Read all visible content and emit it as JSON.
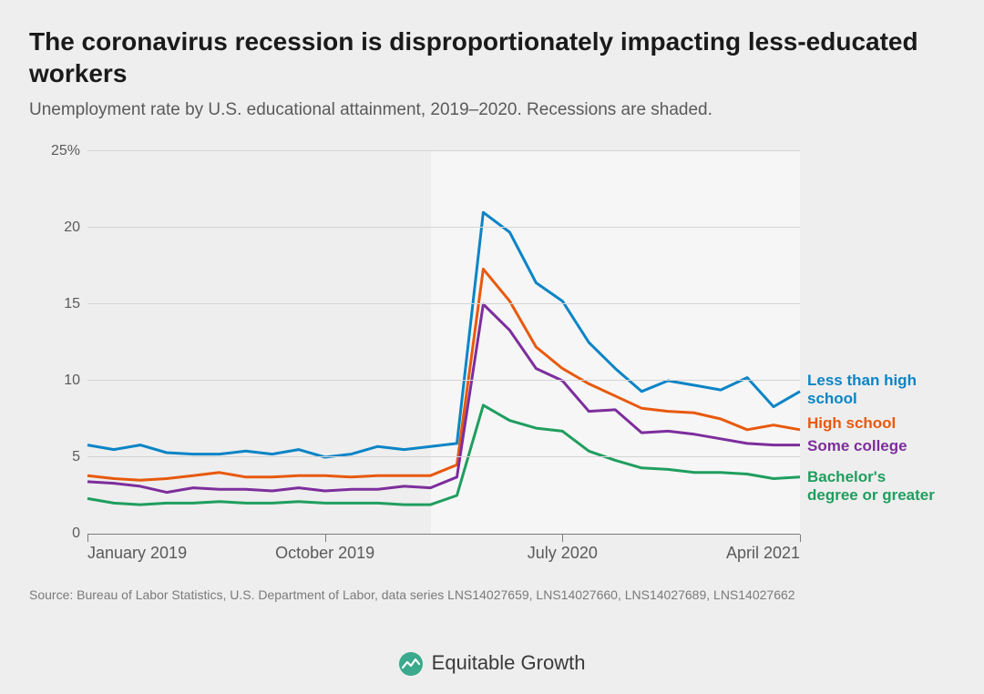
{
  "title": "The coronavirus recession is disproportionately impacting less-educated workers",
  "subtitle": "Unemployment rate by U.S. educational attainment, 2019–2020. Recessions are shaded.",
  "source": "Source: Bureau of Labor Statistics, U.S. Department of Labor, data series LNS14027659, LNS14027660, LNS14027689, LNS14027662",
  "footer_brand": "Equitable Growth",
  "chart": {
    "type": "line",
    "background_color": "#eeeeee",
    "recession_bg": "#f6f6f6",
    "grid_color": "#d4d4d4",
    "axis_color": "#7a7a7a",
    "tick_label_color": "#5a5a5a",
    "title_fontsize": 28,
    "subtitle_fontsize": 19,
    "label_fontsize": 17,
    "tick_fontsize": 16,
    "line_width": 3,
    "ylim": [
      0,
      25
    ],
    "yticks": [
      0,
      5,
      10,
      15,
      20,
      25
    ],
    "ytick_labels": [
      "0",
      "5",
      "10",
      "15",
      "20",
      "25%"
    ],
    "x_index_range": [
      0,
      27
    ],
    "recession_start_index": 13,
    "recession_end_index": 27,
    "xticks": [
      {
        "index": 0,
        "label": "January 2019"
      },
      {
        "index": 9,
        "label": "October 2019"
      },
      {
        "index": 18,
        "label": "July 2020"
      },
      {
        "index": 27,
        "label": "April 2021"
      }
    ],
    "series": [
      {
        "name": "Less than high school",
        "color": "#0b84c6",
        "label_y": 10.0,
        "label_lines": [
          "Less than high",
          "school"
        ],
        "values": [
          5.8,
          5.5,
          5.8,
          5.3,
          5.2,
          5.2,
          5.4,
          5.2,
          5.5,
          5.0,
          5.2,
          5.7,
          5.5,
          5.7,
          5.9,
          21.0,
          19.7,
          16.4,
          15.2,
          12.5,
          10.8,
          9.3,
          10.0,
          9.7,
          9.4,
          10.2,
          8.3,
          9.3
        ]
      },
      {
        "name": "High school",
        "color": "#e8590c",
        "label_y": 7.2,
        "label_lines": [
          "High school"
        ],
        "values": [
          3.8,
          3.6,
          3.5,
          3.6,
          3.8,
          4.0,
          3.7,
          3.7,
          3.8,
          3.8,
          3.7,
          3.8,
          3.8,
          3.8,
          4.5,
          17.3,
          15.2,
          12.2,
          10.8,
          9.8,
          9.0,
          8.2,
          8.0,
          7.9,
          7.5,
          6.8,
          7.1,
          6.8
        ]
      },
      {
        "name": "Some college",
        "color": "#7d2e9c",
        "label_y": 5.7,
        "label_lines": [
          "Some college"
        ],
        "values": [
          3.4,
          3.3,
          3.1,
          2.7,
          3.0,
          2.9,
          2.9,
          2.8,
          3.0,
          2.8,
          2.9,
          2.9,
          3.1,
          3.0,
          3.7,
          15.0,
          13.3,
          10.8,
          10.0,
          8.0,
          8.1,
          6.6,
          6.7,
          6.5,
          6.2,
          5.9,
          5.8,
          5.8
        ]
      },
      {
        "name": "Bachelor's degree or greater",
        "color": "#1f9e5f",
        "label_y": 3.7,
        "label_lines": [
          "Bachelor's",
          "degree or greater"
        ],
        "values": [
          2.3,
          2.0,
          1.9,
          2.0,
          2.0,
          2.1,
          2.0,
          2.0,
          2.1,
          2.0,
          2.0,
          2.0,
          1.9,
          1.9,
          2.5,
          8.4,
          7.4,
          6.9,
          6.7,
          5.4,
          4.8,
          4.3,
          4.2,
          4.0,
          4.0,
          3.9,
          3.6,
          3.7
        ]
      }
    ]
  }
}
